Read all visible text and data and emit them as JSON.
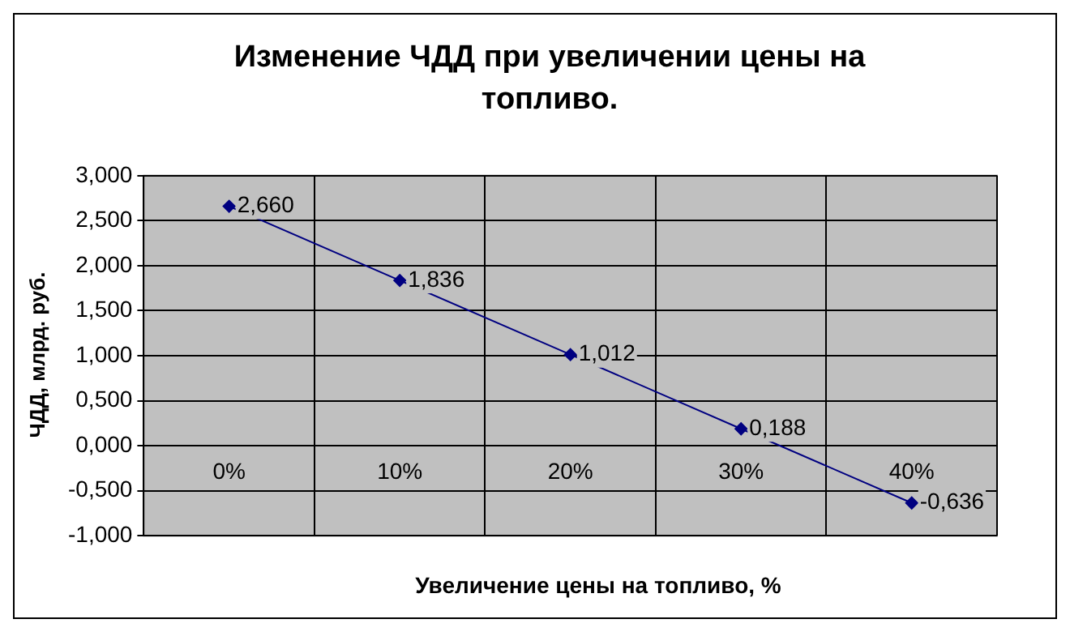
{
  "chart_data": {
    "type": "line",
    "title": "Изменение ЧДД при увеличении цены на топливо.",
    "xlabel": "Увеличение цены на топливо, %",
    "ylabel": "ЧДД, млрд. руб.",
    "categories": [
      "0%",
      "10%",
      "20%",
      "30%",
      "40%"
    ],
    "series": [
      {
        "color": "#000080",
        "values": [
          2.66,
          1.836,
          1.012,
          0.188,
          -0.636
        ],
        "value_labels": [
          "2,660",
          "1,836",
          "1,012",
          "0,188",
          "-0,636"
        ]
      }
    ],
    "ylim": [
      -1,
      3
    ],
    "yticks": [
      {
        "value": -1,
        "label": "-1,000"
      },
      {
        "value": -0.5,
        "label": "-0,500"
      },
      {
        "value": 0,
        "label": "0,000"
      },
      {
        "value": 0.5,
        "label": "0,500"
      },
      {
        "value": 1,
        "label": "1,000"
      },
      {
        "value": 1.5,
        "label": "1,500"
      },
      {
        "value": 2,
        "label": "2,000"
      },
      {
        "value": 2.5,
        "label": "2,500"
      },
      {
        "value": 3,
        "label": "3,000"
      }
    ],
    "grid": true,
    "legend": false,
    "marker": "diamond",
    "line_style": "solid"
  }
}
